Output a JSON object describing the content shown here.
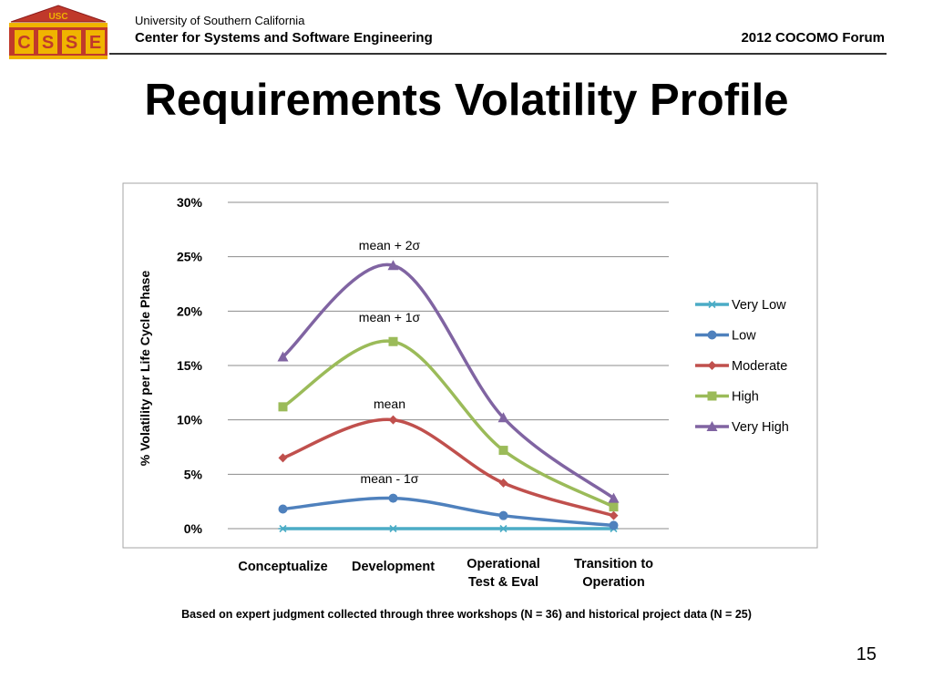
{
  "header": {
    "logo_top_text": "USC",
    "logo_letters": [
      "C",
      "S",
      "S",
      "E"
    ],
    "university": "University of Southern California",
    "center": "Center for Systems and Software Engineering",
    "forum": "2012 COCOMO Forum"
  },
  "slide": {
    "title": "Requirements Volatility Profile",
    "footnote": "Based on expert judgment collected through three workshops (N = 36) and historical project data (N = 25)",
    "page_number": "15"
  },
  "colors": {
    "very_low": "#4bacc6",
    "low": "#4f81bd",
    "moderate": "#c0504d",
    "high": "#9bbb59",
    "very_high": "#8064a2",
    "logo_red": "#c0392b",
    "logo_gold": "#f0b400"
  },
  "chart_data": {
    "type": "line",
    "categories": [
      "Conceptualize",
      "Development",
      "Operational Test & Eval",
      "Transition to Operation"
    ],
    "category_lines": [
      [
        "Conceptualize"
      ],
      [
        "Development"
      ],
      [
        "Operational",
        "Test & Eval"
      ],
      [
        "Transition to",
        "Operation"
      ]
    ],
    "ylabel": "% Volatility per Life Cycle Phase",
    "ylim": [
      0,
      30
    ],
    "yticks": [
      "0%",
      "5%",
      "10%",
      "15%",
      "20%",
      "25%",
      "30%"
    ],
    "grid": true,
    "legend_position": "right",
    "smooth": true,
    "series": [
      {
        "name": "Very Low",
        "values": [
          0,
          0,
          0,
          0
        ],
        "marker": "star"
      },
      {
        "name": "Low",
        "values": [
          1.8,
          2.8,
          1.2,
          0.3
        ],
        "marker": "circle"
      },
      {
        "name": "Moderate",
        "values": [
          6.5,
          10,
          4.2,
          1.2
        ],
        "marker": "diamond"
      },
      {
        "name": "High",
        "values": [
          11.2,
          17.2,
          7.2,
          2
        ],
        "marker": "square"
      },
      {
        "name": "Very High",
        "values": [
          15.8,
          24.2,
          10.2,
          2.8
        ],
        "marker": "triangle"
      }
    ],
    "annotations": [
      {
        "text": "mean + 2σ",
        "series": "Very High"
      },
      {
        "text": "mean + 1σ",
        "series": "High"
      },
      {
        "text": "mean",
        "series": "Moderate"
      },
      {
        "text": "mean - 1σ",
        "series": "Low"
      }
    ]
  }
}
